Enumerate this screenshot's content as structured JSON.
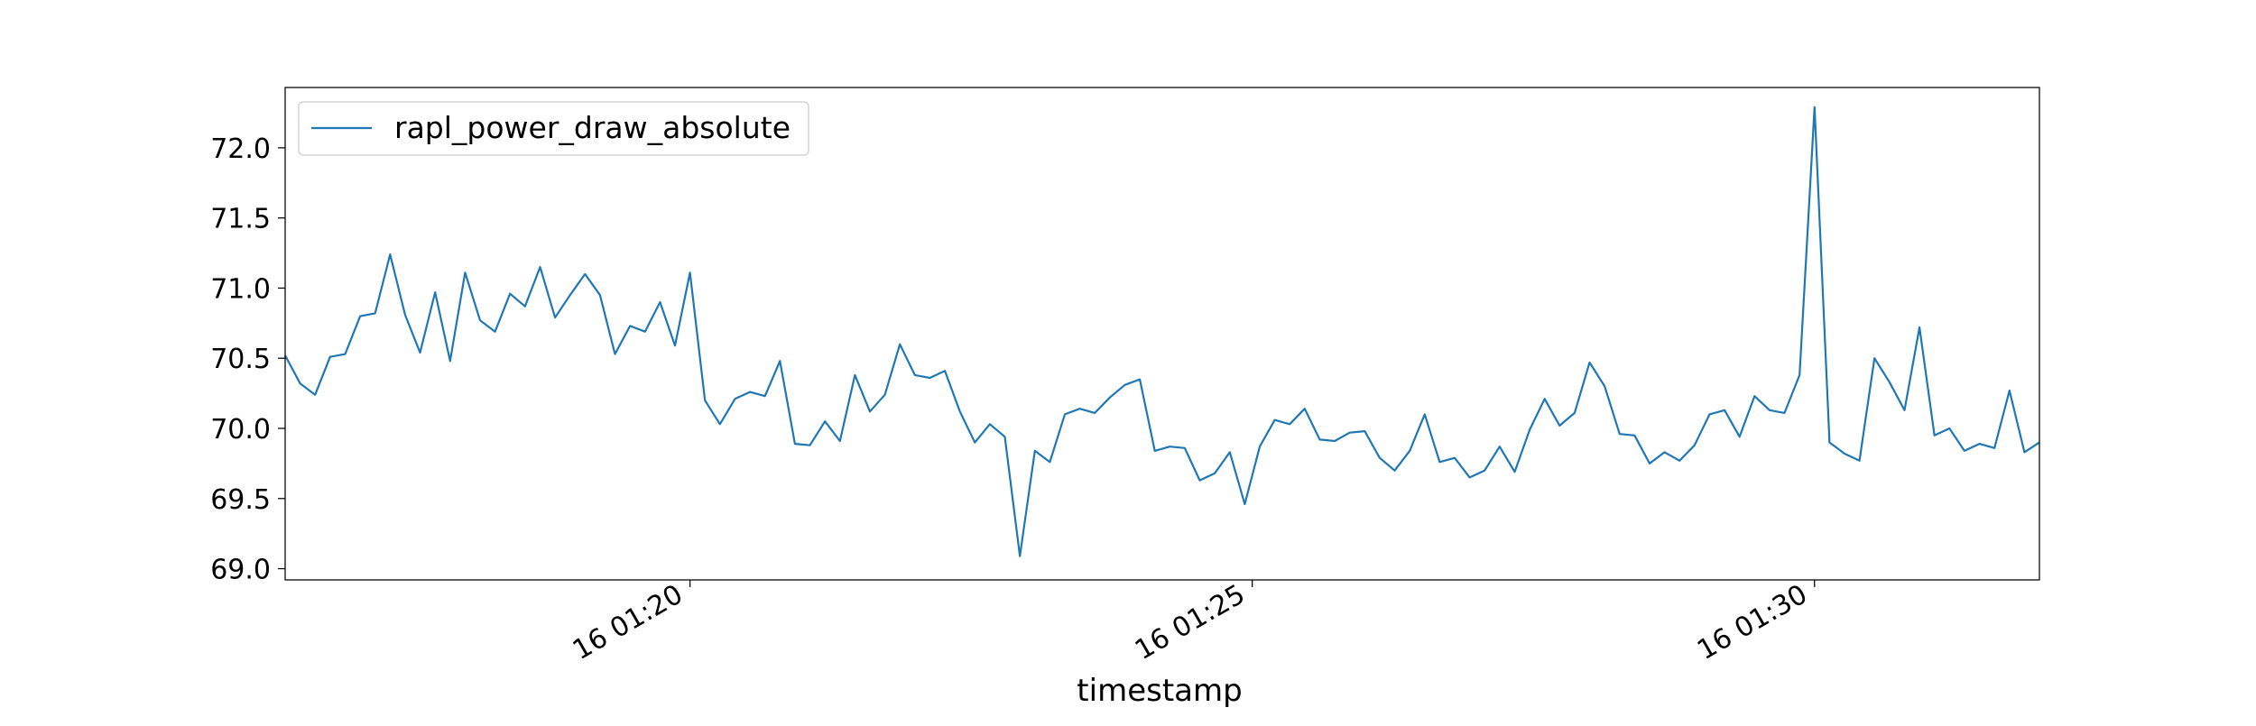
{
  "chart_data": {
    "type": "line",
    "xlabel": "timestamp",
    "ylabel": "",
    "title": "",
    "ylim": [
      68.92,
      72.43
    ],
    "xlim": [
      "16 01:16:24",
      "16 01:32:00"
    ],
    "grid": false,
    "legend_position": "top-left",
    "colors": {
      "series": "#1f77b4",
      "axes": "#000000",
      "background": "#ffffff"
    },
    "y_ticks": [
      {
        "value": 69.0,
        "label": "69.0"
      },
      {
        "value": 69.5,
        "label": "69.5"
      },
      {
        "value": 70.0,
        "label": "70.0"
      },
      {
        "value": 70.5,
        "label": "70.5"
      },
      {
        "value": 71.0,
        "label": "71.0"
      },
      {
        "value": 71.5,
        "label": "71.5"
      },
      {
        "value": 72.0,
        "label": "72.0"
      }
    ],
    "x_ticks": [
      {
        "value": "16 01:20:00",
        "label": "16 01:20"
      },
      {
        "value": "16 01:25:00",
        "label": "16 01:25"
      },
      {
        "value": "16 01:30:00",
        "label": "16 01:30"
      }
    ],
    "series": [
      {
        "name": "rapl_power_draw_absolute",
        "x": [
          "16 01:16:24",
          "16 01:16:32",
          "16 01:16:40",
          "16 01:16:48",
          "16 01:16:56",
          "16 01:17:04",
          "16 01:17:12",
          "16 01:17:20",
          "16 01:17:28",
          "16 01:17:36",
          "16 01:17:44",
          "16 01:17:52",
          "16 01:18:00",
          "16 01:18:08",
          "16 01:18:16",
          "16 01:18:24",
          "16 01:18:32",
          "16 01:18:40",
          "16 01:18:48",
          "16 01:18:56",
          "16 01:19:04",
          "16 01:19:12",
          "16 01:19:20",
          "16 01:19:28",
          "16 01:19:36",
          "16 01:19:44",
          "16 01:19:52",
          "16 01:20:00",
          "16 01:20:08",
          "16 01:20:16",
          "16 01:20:24",
          "16 01:20:32",
          "16 01:20:40",
          "16 01:20:48",
          "16 01:20:56",
          "16 01:21:04",
          "16 01:21:12",
          "16 01:21:20",
          "16 01:21:28",
          "16 01:21:36",
          "16 01:21:44",
          "16 01:21:52",
          "16 01:22:00",
          "16 01:22:08",
          "16 01:22:16",
          "16 01:22:24",
          "16 01:22:32",
          "16 01:22:40",
          "16 01:22:48",
          "16 01:22:56",
          "16 01:23:04",
          "16 01:23:12",
          "16 01:23:20",
          "16 01:23:28",
          "16 01:23:36",
          "16 01:23:44",
          "16 01:23:52",
          "16 01:24:00",
          "16 01:24:08",
          "16 01:24:16",
          "16 01:24:24",
          "16 01:24:32",
          "16 01:24:40",
          "16 01:24:48",
          "16 01:24:56",
          "16 01:25:04",
          "16 01:25:12",
          "16 01:25:20",
          "16 01:25:28",
          "16 01:25:36",
          "16 01:25:44",
          "16 01:25:52",
          "16 01:26:00",
          "16 01:26:08",
          "16 01:26:16",
          "16 01:26:24",
          "16 01:26:32",
          "16 01:26:40",
          "16 01:26:48",
          "16 01:26:56",
          "16 01:27:04",
          "16 01:27:12",
          "16 01:27:20",
          "16 01:27:28",
          "16 01:27:36",
          "16 01:27:44",
          "16 01:27:52",
          "16 01:28:00",
          "16 01:28:08",
          "16 01:28:16",
          "16 01:28:24",
          "16 01:28:32",
          "16 01:28:40",
          "16 01:28:48",
          "16 01:28:56",
          "16 01:29:04",
          "16 01:29:12",
          "16 01:29:20",
          "16 01:29:28",
          "16 01:29:36",
          "16 01:29:44",
          "16 01:29:52",
          "16 01:30:00",
          "16 01:30:08",
          "16 01:30:16",
          "16 01:30:24",
          "16 01:30:32",
          "16 01:30:40",
          "16 01:30:48",
          "16 01:30:56",
          "16 01:31:04",
          "16 01:31:12",
          "16 01:31:20",
          "16 01:31:28",
          "16 01:31:36",
          "16 01:31:44",
          "16 01:31:52",
          "16 01:32:00"
        ],
        "values": [
          70.52,
          70.32,
          70.24,
          70.51,
          70.53,
          70.8,
          70.82,
          71.24,
          70.81,
          70.54,
          70.97,
          70.48,
          71.11,
          70.77,
          70.69,
          70.96,
          70.87,
          71.15,
          70.79,
          70.95,
          71.1,
          70.95,
          70.53,
          70.73,
          70.69,
          70.9,
          70.59,
          71.11,
          70.2,
          70.03,
          70.21,
          70.26,
          70.23,
          70.48,
          69.89,
          69.88,
          70.05,
          69.91,
          70.38,
          70.12,
          70.24,
          70.6,
          70.38,
          70.36,
          70.41,
          70.12,
          69.9,
          70.03,
          69.94,
          69.09,
          69.84,
          69.76,
          70.1,
          70.14,
          70.11,
          70.22,
          70.31,
          70.35,
          69.84,
          69.87,
          69.86,
          69.63,
          69.68,
          69.83,
          69.46,
          69.87,
          70.06,
          70.03,
          70.14,
          69.92,
          69.91,
          69.97,
          69.98,
          69.79,
          69.7,
          69.84,
          70.1,
          69.76,
          69.79,
          69.65,
          69.7,
          69.87,
          69.69,
          69.99,
          70.21,
          70.02,
          70.11,
          70.47,
          70.3,
          69.96,
          69.95,
          69.75,
          69.83,
          69.77,
          69.88,
          70.1,
          70.13,
          69.94,
          70.23,
          70.13,
          70.11,
          70.38,
          72.29,
          69.9,
          69.82,
          69.77,
          70.5,
          70.33,
          70.13,
          70.72,
          69.95,
          70.0,
          69.84,
          69.89,
          69.86,
          70.27,
          69.83,
          69.9
        ]
      }
    ]
  }
}
